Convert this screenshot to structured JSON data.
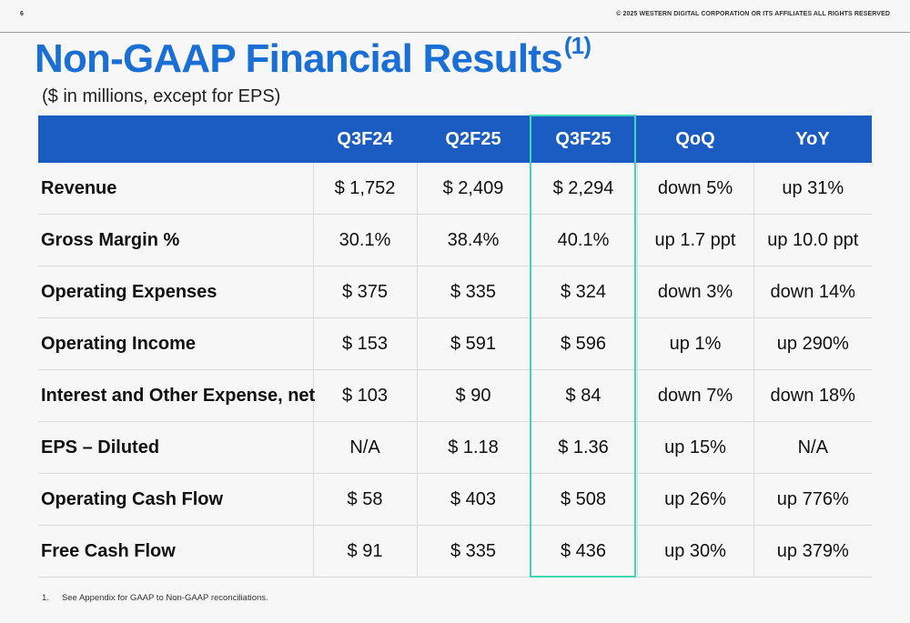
{
  "page_number": "6",
  "copyright": "© 2025 WESTERN DIGITAL CORPORATION OR ITS AFFILIATES  ALL RIGHTS RESERVED",
  "title": "Non-GAAP Financial Results",
  "title_footnote_ref": "(1)",
  "subtitle": "($ in millions, except for EPS)",
  "highlight_color": "#3fd6b4",
  "header_color": "#1a5cc2",
  "title_color": "#1a6fd6",
  "table": {
    "headers": [
      "",
      "Q3F24",
      "Q2F25",
      "Q3F25",
      "QoQ",
      "YoY"
    ],
    "rows": [
      {
        "metric": "Revenue",
        "values": [
          "$ 1,752",
          "$ 2,409",
          "$ 2,294",
          "down 5%",
          "up 31%"
        ]
      },
      {
        "metric": "Gross Margin %",
        "values": [
          "30.1%",
          "38.4%",
          "40.1%",
          "up 1.7 ppt",
          "up 10.0 ppt"
        ]
      },
      {
        "metric": "Operating Expenses",
        "values": [
          "$ 375",
          "$ 335",
          "$ 324",
          "down 3%",
          "down 14%"
        ]
      },
      {
        "metric": "Operating Income",
        "values": [
          "$ 153",
          "$ 591",
          "$ 596",
          "up 1%",
          "up 290%"
        ]
      },
      {
        "metric": "Interest and Other Expense, net",
        "values": [
          "$ 103",
          "$ 90",
          "$ 84",
          "down 7%",
          "down 18%"
        ]
      },
      {
        "metric": "EPS – Diluted",
        "values": [
          "N/A",
          "$ 1.18",
          "$ 1.36",
          "up 15%",
          "N/A"
        ]
      },
      {
        "metric": "Operating Cash Flow",
        "values": [
          "$ 58",
          "$ 403",
          "$ 508",
          "up 26%",
          "up 776%"
        ]
      },
      {
        "metric": "Free Cash Flow",
        "values": [
          "$ 91",
          "$ 335",
          "$ 436",
          "up 30%",
          "up 379%"
        ]
      }
    ]
  },
  "footnote": {
    "number": "1.",
    "text": "See Appendix for GAAP to Non-GAAP reconciliations."
  }
}
